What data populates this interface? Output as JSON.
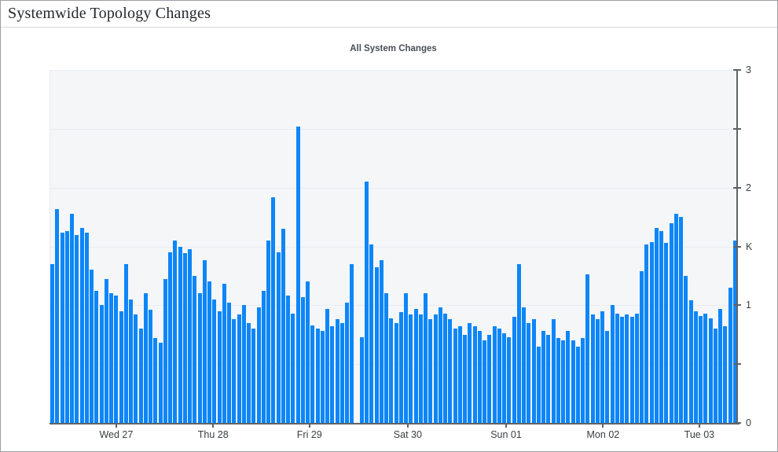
{
  "page": {
    "title": "Systemwide Topology Changes"
  },
  "colors": {
    "bar": "#0d86f8",
    "plot_background": "#f5f6f8",
    "gridline": "#eaedf0",
    "axis": "#5f6368",
    "tick_label": "#3c4043",
    "chart_title": "#4a4e53"
  },
  "chart_data": {
    "type": "bar",
    "title": "All System Changes",
    "xlabel": "",
    "ylabel": "K",
    "unit": "K",
    "ylim": [
      0,
      3
    ],
    "grid": "horizontal",
    "legend": "none",
    "axis_side": "right",
    "y_tick_values": [
      0,
      0.5,
      1,
      1.5,
      2,
      2.5,
      3
    ],
    "y_tick_labels": [
      {
        "label": "3",
        "value": 3
      },
      {
        "label": "2",
        "value": 2
      },
      {
        "label": "K",
        "value": 1.5
      },
      {
        "label": "1",
        "value": 1
      },
      {
        "label": "0",
        "value": 0
      }
    ],
    "x_ticks": [
      {
        "label": "Wed 27",
        "pos": 0.097
      },
      {
        "label": "Thu 28",
        "pos": 0.238
      },
      {
        "label": "Fri 29",
        "pos": 0.378
      },
      {
        "label": "Sat 30",
        "pos": 0.521
      },
      {
        "label": "Sun 01",
        "pos": 0.664
      },
      {
        "label": "Mon 02",
        "pos": 0.805
      },
      {
        "label": "Tue 03",
        "pos": 0.945
      }
    ],
    "values_note": "per-interval change counts in thousands (K); null = missing data gap",
    "values": [
      1.35,
      1.82,
      1.62,
      1.63,
      1.78,
      1.6,
      1.66,
      1.62,
      1.3,
      1.12,
      1.0,
      1.22,
      1.1,
      1.08,
      0.95,
      1.35,
      1.05,
      0.92,
      0.8,
      1.1,
      0.96,
      0.72,
      0.68,
      1.22,
      1.45,
      1.55,
      1.5,
      1.44,
      1.48,
      1.25,
      1.1,
      1.38,
      1.2,
      1.05,
      0.95,
      1.18,
      1.02,
      0.88,
      0.92,
      1.0,
      0.85,
      0.8,
      0.98,
      1.12,
      1.55,
      1.92,
      1.45,
      1.65,
      1.08,
      0.93,
      2.52,
      1.07,
      1.2,
      0.83,
      0.8,
      0.78,
      0.97,
      0.82,
      0.88,
      0.85,
      1.02,
      1.35,
      null,
      0.73,
      2.05,
      1.52,
      1.32,
      1.38,
      1.1,
      0.89,
      0.85,
      0.94,
      1.1,
      0.92,
      0.97,
      0.92,
      1.1,
      0.88,
      0.92,
      0.98,
      0.93,
      0.88,
      0.8,
      0.82,
      0.75,
      0.85,
      0.82,
      0.78,
      0.7,
      0.75,
      0.82,
      0.8,
      0.76,
      0.73,
      0.9,
      1.35,
      0.98,
      0.85,
      0.88,
      0.65,
      0.78,
      0.75,
      0.88,
      0.72,
      0.7,
      0.78,
      0.7,
      0.65,
      0.72,
      1.26,
      0.92,
      0.88,
      0.95,
      0.78,
      1.0,
      0.93,
      0.9,
      0.92,
      0.9,
      0.93,
      1.29,
      1.52,
      1.54,
      1.66,
      1.63,
      1.53,
      1.7,
      1.78,
      1.75,
      1.25,
      1.04,
      0.95,
      0.91,
      0.93,
      0.89,
      0.8,
      0.97,
      0.82,
      1.15,
      1.55
    ]
  }
}
